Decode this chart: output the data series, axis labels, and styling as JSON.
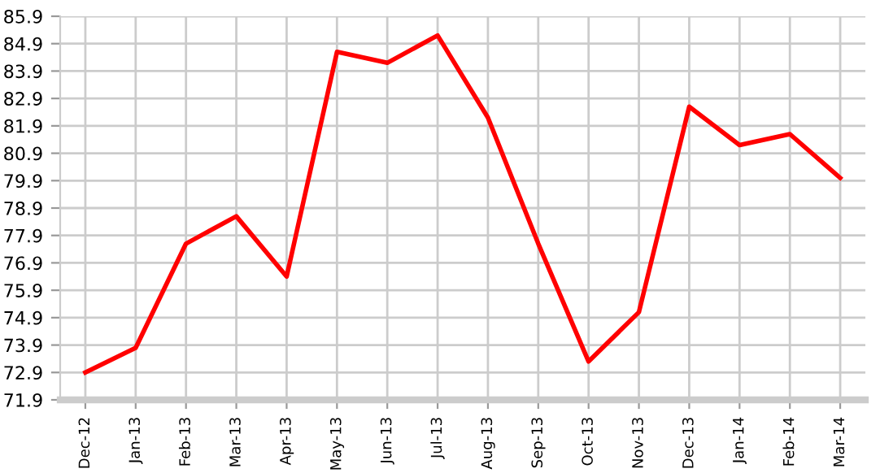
{
  "chart_data": {
    "type": "line",
    "categories": [
      "Dec-12",
      "Jan-13",
      "Feb-13",
      "Mar-13",
      "Apr-13",
      "May-13",
      "Jun-13",
      "Jul-13",
      "Aug-13",
      "Sep-13",
      "Oct-13",
      "Nov-13",
      "Dec-13",
      "Jan-14",
      "Feb-14",
      "Mar-14"
    ],
    "series": [
      {
        "color": "#ff0000",
        "values": [
          72.9,
          73.8,
          77.6,
          78.6,
          76.4,
          84.6,
          84.2,
          85.2,
          82.2,
          77.6,
          73.3,
          75.1,
          82.6,
          81.2,
          81.6,
          80.0
        ]
      }
    ],
    "ylim": [
      71.9,
      85.9
    ],
    "yticks": [
      71.9,
      72.9,
      73.9,
      74.9,
      75.9,
      76.9,
      77.9,
      78.9,
      79.9,
      80.9,
      81.9,
      82.9,
      83.9,
      84.9,
      85.9
    ],
    "grid": true,
    "marker": "none",
    "line_style": "solid"
  }
}
